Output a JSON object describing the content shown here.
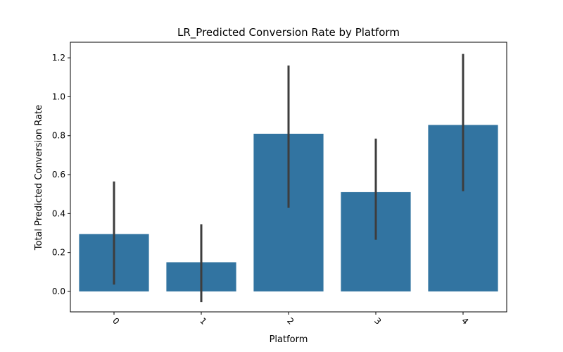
{
  "chart_data": {
    "type": "bar",
    "title": "LR_Predicted Conversion Rate by Platform",
    "xlabel": "Platform",
    "ylabel": "Total Predicted Conversion Rate",
    "categories": [
      "0",
      "1",
      "2",
      "3",
      "4"
    ],
    "values": [
      0.295,
      0.15,
      0.81,
      0.51,
      0.855
    ],
    "error_low": [
      0.035,
      -0.055,
      0.43,
      0.265,
      0.515
    ],
    "error_high": [
      0.565,
      0.345,
      1.16,
      0.785,
      1.22
    ],
    "ylim": [
      -0.105,
      1.28
    ],
    "yticks": [
      "0.0",
      "0.2",
      "0.4",
      "0.6",
      "0.8",
      "1.0",
      "1.2"
    ],
    "ytick_values": [
      0,
      0.2,
      0.4,
      0.6,
      0.8,
      1.0,
      1.2
    ],
    "bar_color": "#3274a1",
    "error_color": "#3d3d3d",
    "grid": false,
    "legend": "none",
    "xtick_rotation_deg": 45
  }
}
